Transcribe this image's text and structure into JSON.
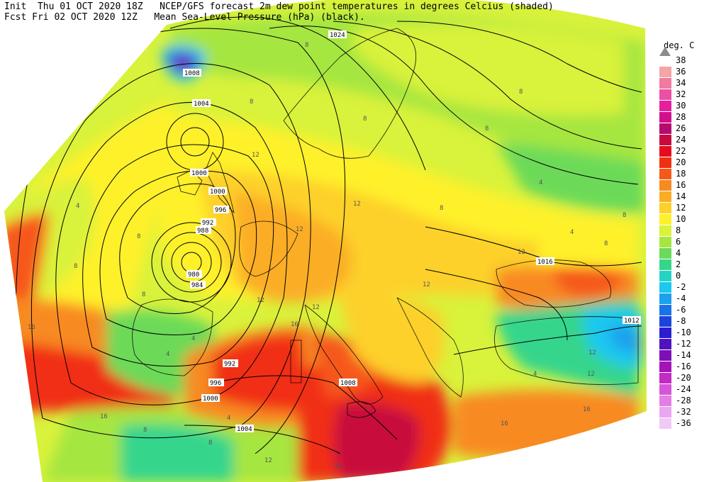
{
  "header": {
    "line1": "Init  Thu 01 OCT 2020 18Z   NCEP/GFS forecast 2m dew point temperatures in degrees Celcius (shaded)",
    "line2": "Fcst Fri 02 OCT 2020 12Z   Mean Sea-Level Pressure (hPa) (black)."
  },
  "legend": {
    "title": "deg. C",
    "top_label": "38",
    "items": [
      {
        "label": "36",
        "color": "#f5a5a5"
      },
      {
        "label": "34",
        "color": "#f07aa0"
      },
      {
        "label": "32",
        "color": "#ec4fa4"
      },
      {
        "label": "30",
        "color": "#e6209c"
      },
      {
        "label": "28",
        "color": "#d30e8c"
      },
      {
        "label": "26",
        "color": "#b50a6e"
      },
      {
        "label": "24",
        "color": "#c80a3c"
      },
      {
        "label": "22",
        "color": "#e40d1e"
      },
      {
        "label": "20",
        "color": "#f12f13"
      },
      {
        "label": "18",
        "color": "#f6581a"
      },
      {
        "label": "16",
        "color": "#f88a22"
      },
      {
        "label": "14",
        "color": "#fbad25"
      },
      {
        "label": "12",
        "color": "#fdd02a"
      },
      {
        "label": "10",
        "color": "#fef12c"
      },
      {
        "label": "8",
        "color": "#d9f23b"
      },
      {
        "label": "6",
        "color": "#a6e640"
      },
      {
        "label": "4",
        "color": "#6cda58"
      },
      {
        "label": "2",
        "color": "#36d58c"
      },
      {
        "label": "0",
        "color": "#23d4c6"
      },
      {
        "label": "-2",
        "color": "#1cc8f0"
      },
      {
        "label": "-4",
        "color": "#1aa0ee"
      },
      {
        "label": "-6",
        "color": "#1a72e8"
      },
      {
        "label": "-8",
        "color": "#1c44dc"
      },
      {
        "label": "-10",
        "color": "#2a1ed0"
      },
      {
        "label": "-12",
        "color": "#5012c0"
      },
      {
        "label": "-14",
        "color": "#7d10b4"
      },
      {
        "label": "-16",
        "color": "#a412b8"
      },
      {
        "label": "-20",
        "color": "#c42ac4"
      },
      {
        "label": "-24",
        "color": "#d655d8"
      },
      {
        "label": "-28",
        "color": "#e27ee6"
      },
      {
        "label": "-32",
        "color": "#eaa6f0"
      },
      {
        "label": "-36",
        "color": "#f2c8f6"
      }
    ]
  },
  "isobars": [
    {
      "label": "1024",
      "x": 20,
      "y": 60
    },
    {
      "label": "1008",
      "x": -10,
      "y": 75
    },
    {
      "label": "1004",
      "x": 20,
      "y": 36
    },
    {
      "label": "1000",
      "x": 5,
      "y": 53
    },
    {
      "label": "1000",
      "x": 5,
      "y": 57
    },
    {
      "label": "996",
      "x": -12,
      "y": 55
    },
    {
      "label": "992",
      "x": -10,
      "y": 51
    },
    {
      "label": "988",
      "x": -10,
      "y": 50
    },
    {
      "label": "980",
      "x": -12,
      "y": 49
    },
    {
      "label": "984",
      "x": -12,
      "y": 48
    },
    {
      "label": "992",
      "x": 0,
      "y": 43
    },
    {
      "label": "996",
      "x": -2,
      "y": 41
    },
    {
      "label": "1000",
      "x": -2,
      "y": 39
    },
    {
      "label": "1004",
      "x": 2,
      "y": 36
    },
    {
      "label": "1008",
      "x": 14,
      "y": 39
    },
    {
      "label": "1016",
      "x": 30,
      "y": 50
    },
    {
      "label": "1012",
      "x": 40,
      "y": 41
    }
  ],
  "map_values": [
    {
      "label": "8",
      "x": 18,
      "y": 72
    },
    {
      "label": "8",
      "x": 22,
      "y": 64
    },
    {
      "label": "8",
      "x": 36,
      "y": 68
    },
    {
      "label": "8",
      "x": 12,
      "y": 70
    },
    {
      "label": "8",
      "x": 38,
      "y": 62
    },
    {
      "label": "12",
      "x": -2,
      "y": 66
    },
    {
      "label": "12",
      "x": 10,
      "y": 60
    },
    {
      "label": "12",
      "x": 4,
      "y": 51
    },
    {
      "label": "12",
      "x": 32,
      "y": 54
    },
    {
      "label": "12",
      "x": 22,
      "y": 50
    },
    {
      "label": "12",
      "x": 36,
      "y": 47
    },
    {
      "label": "8",
      "x": -28,
      "y": 60
    },
    {
      "label": "4",
      "x": -30,
      "y": 55
    },
    {
      "label": "8",
      "x": -24,
      "y": 50
    },
    {
      "label": "8",
      "x": -34,
      "y": 46
    },
    {
      "label": "16",
      "x": -40,
      "y": 40
    },
    {
      "label": "16",
      "x": -28,
      "y": 36
    },
    {
      "label": "4",
      "x": -10,
      "y": 43
    },
    {
      "label": "4",
      "x": -14,
      "y": 40
    },
    {
      "label": "4",
      "x": -2,
      "y": 38
    },
    {
      "label": "8",
      "x": -6,
      "y": 37
    },
    {
      "label": "16",
      "x": 14,
      "y": 35
    },
    {
      "label": "16",
      "x": 30,
      "y": 35
    },
    {
      "label": "16",
      "x": 38,
      "y": 35
    },
    {
      "label": "12",
      "x": 28,
      "y": 43
    },
    {
      "label": "4",
      "x": 30,
      "y": 37
    },
    {
      "label": "8",
      "x": -18,
      "y": 36
    },
    {
      "label": "12",
      "x": 8,
      "y": 33
    },
    {
      "label": "4",
      "x": 42,
      "y": 57
    },
    {
      "label": "8",
      "x": 46,
      "y": 56
    },
    {
      "label": "4",
      "x": 38,
      "y": 53
    },
    {
      "label": "8",
      "x": 44,
      "y": 50
    },
    {
      "label": "12",
      "x": 8,
      "y": 38
    },
    {
      "label": "16",
      "x": -2,
      "y": 49
    },
    {
      "label": "8",
      "x": 28,
      "y": 63
    },
    {
      "label": "12",
      "x": 16,
      "y": 56
    }
  ]
}
